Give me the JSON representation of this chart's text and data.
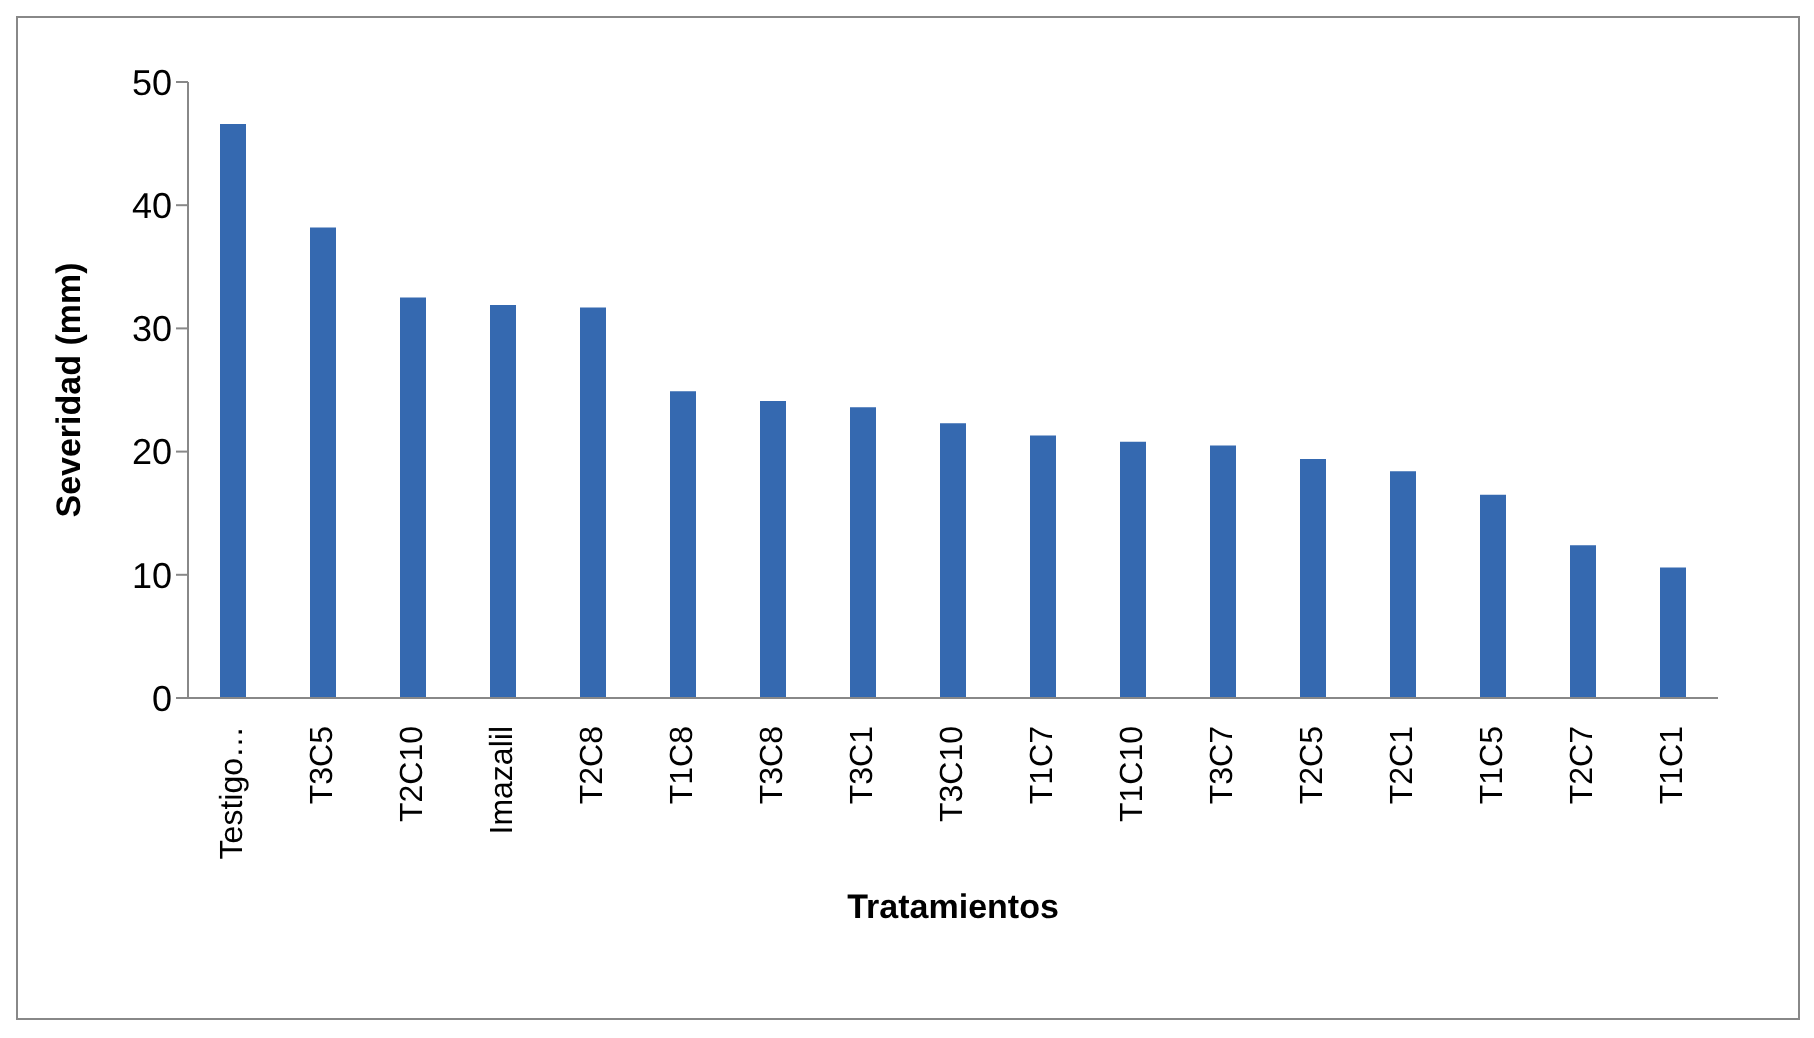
{
  "chart_data": {
    "type": "bar",
    "xlabel": "Tratamientos",
    "ylabel": "Severidad  (mm)",
    "categories": [
      "Testigo…",
      "T3C5",
      "T2C10",
      "Imazalil",
      "T2C8",
      "T1C8",
      "T3C8",
      "T3C1",
      "T3C10",
      "T1C7",
      "T1C10",
      "T3C7",
      "T2C5",
      "T2C1",
      "T1C5",
      "T2C7",
      "T1C1"
    ],
    "values": [
      46.6,
      38.2,
      32.5,
      31.9,
      31.7,
      24.9,
      24.1,
      23.6,
      22.3,
      21.3,
      20.8,
      20.5,
      19.4,
      18.4,
      16.5,
      12.4,
      10.6
    ],
    "color": "#3569b0",
    "ylim": [
      0,
      50
    ],
    "yticks": [
      0,
      10,
      20,
      30,
      40,
      50
    ],
    "grid": false,
    "legend": false
  }
}
